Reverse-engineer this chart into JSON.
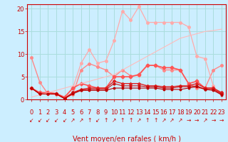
{
  "title": "",
  "xlabel": "Vent moyen/en rafales ( km/h )",
  "bg_color": "#cceeff",
  "grid_color": "#aadddd",
  "x": [
    0,
    1,
    2,
    3,
    4,
    5,
    6,
    7,
    8,
    9,
    10,
    11,
    12,
    13,
    14,
    15,
    16,
    17,
    18,
    19,
    20,
    21,
    22,
    23
  ],
  "ylim": [
    0,
    21
  ],
  "yticks": [
    0,
    5,
    10,
    15,
    20
  ],
  "series": [
    {
      "y": [
        9.2,
        3.8,
        1.2,
        1.1,
        0.3,
        1.1,
        6.5,
        7.9,
        7.2,
        6.5,
        5.0,
        6.5,
        5.2,
        5.3,
        7.5,
        7.5,
        6.5,
        6.5,
        6.5,
        3.5,
        2.5,
        2.5,
        6.5,
        7.5
      ],
      "color": "#ff8888",
      "lw": 1.0,
      "marker": "o",
      "ms": 2.5
    },
    {
      "y": [
        2.5,
        1.5,
        1.5,
        1.3,
        0.2,
        2.5,
        8.0,
        11.0,
        8.0,
        8.5,
        13.0,
        19.5,
        17.5,
        20.5,
        17.0,
        17.0,
        17.0,
        17.0,
        17.0,
        16.0,
        9.5,
        9.0,
        3.0,
        null
      ],
      "color": "#ffaaaa",
      "lw": 0.9,
      "marker": "o",
      "ms": 2.5
    },
    {
      "y": [
        2.5,
        1.5,
        1.5,
        1.3,
        0.5,
        2.5,
        3.5,
        3.0,
        2.5,
        2.5,
        5.0,
        5.0,
        5.0,
        5.5,
        7.5,
        7.5,
        7.0,
        7.0,
        6.5,
        3.5,
        4.0,
        2.5,
        2.5,
        1.2
      ],
      "color": "#ff5555",
      "lw": 1.2,
      "marker": "D",
      "ms": 2.5
    },
    {
      "y": [
        2.5,
        1.2,
        1.2,
        1.2,
        0.2,
        1.5,
        2.2,
        2.5,
        2.5,
        2.5,
        4.0,
        3.5,
        3.5,
        3.5,
        3.0,
        3.0,
        2.8,
        2.8,
        3.0,
        3.0,
        3.5,
        2.5,
        2.5,
        1.5
      ],
      "color": "#dd2222",
      "lw": 1.0,
      "marker": "D",
      "ms": 2.0
    },
    {
      "y": [
        2.5,
        1.2,
        1.2,
        1.2,
        0.2,
        1.5,
        2.0,
        2.2,
        2.2,
        2.2,
        3.5,
        3.0,
        3.0,
        3.0,
        2.8,
        2.8,
        2.5,
        2.5,
        2.8,
        2.8,
        3.0,
        2.2,
        2.2,
        1.2
      ],
      "color": "#cc1111",
      "lw": 0.8,
      "marker": "o",
      "ms": 2.0
    },
    {
      "y": [
        0.5,
        1.0,
        1.5,
        2.0,
        2.5,
        3.0,
        3.5,
        4.0,
        4.5,
        5.0,
        5.5,
        6.5,
        7.5,
        8.5,
        9.5,
        10.5,
        11.5,
        12.5,
        13.5,
        14.0,
        14.5,
        15.0,
        15.2,
        15.5
      ],
      "color": "#ffbbbb",
      "lw": 0.8,
      "marker": null,
      "ms": 0
    },
    {
      "y": [
        2.5,
        1.2,
        1.2,
        1.2,
        0.2,
        1.2,
        2.0,
        2.0,
        2.0,
        2.0,
        2.5,
        2.5,
        2.5,
        2.5,
        2.5,
        2.5,
        2.2,
        2.2,
        2.2,
        2.5,
        2.8,
        2.2,
        2.0,
        1.0
      ],
      "color": "#bb0000",
      "lw": 0.8,
      "marker": "o",
      "ms": 1.8
    }
  ],
  "tick_label_fontsize": 6,
  "xlabel_fontsize": 7,
  "axis_color": "#cc0000",
  "tick_color": "#cc0000",
  "arrow_chars": [
    "↙",
    "↙",
    "↙",
    "↙",
    "↙",
    "↗",
    "↗",
    "↑",
    "↙",
    "↑",
    "↗",
    "↑",
    "↑",
    "↗",
    "↑",
    "↑",
    "↗",
    "↗",
    "↗",
    "→",
    "→",
    "↗",
    "→",
    "→"
  ]
}
